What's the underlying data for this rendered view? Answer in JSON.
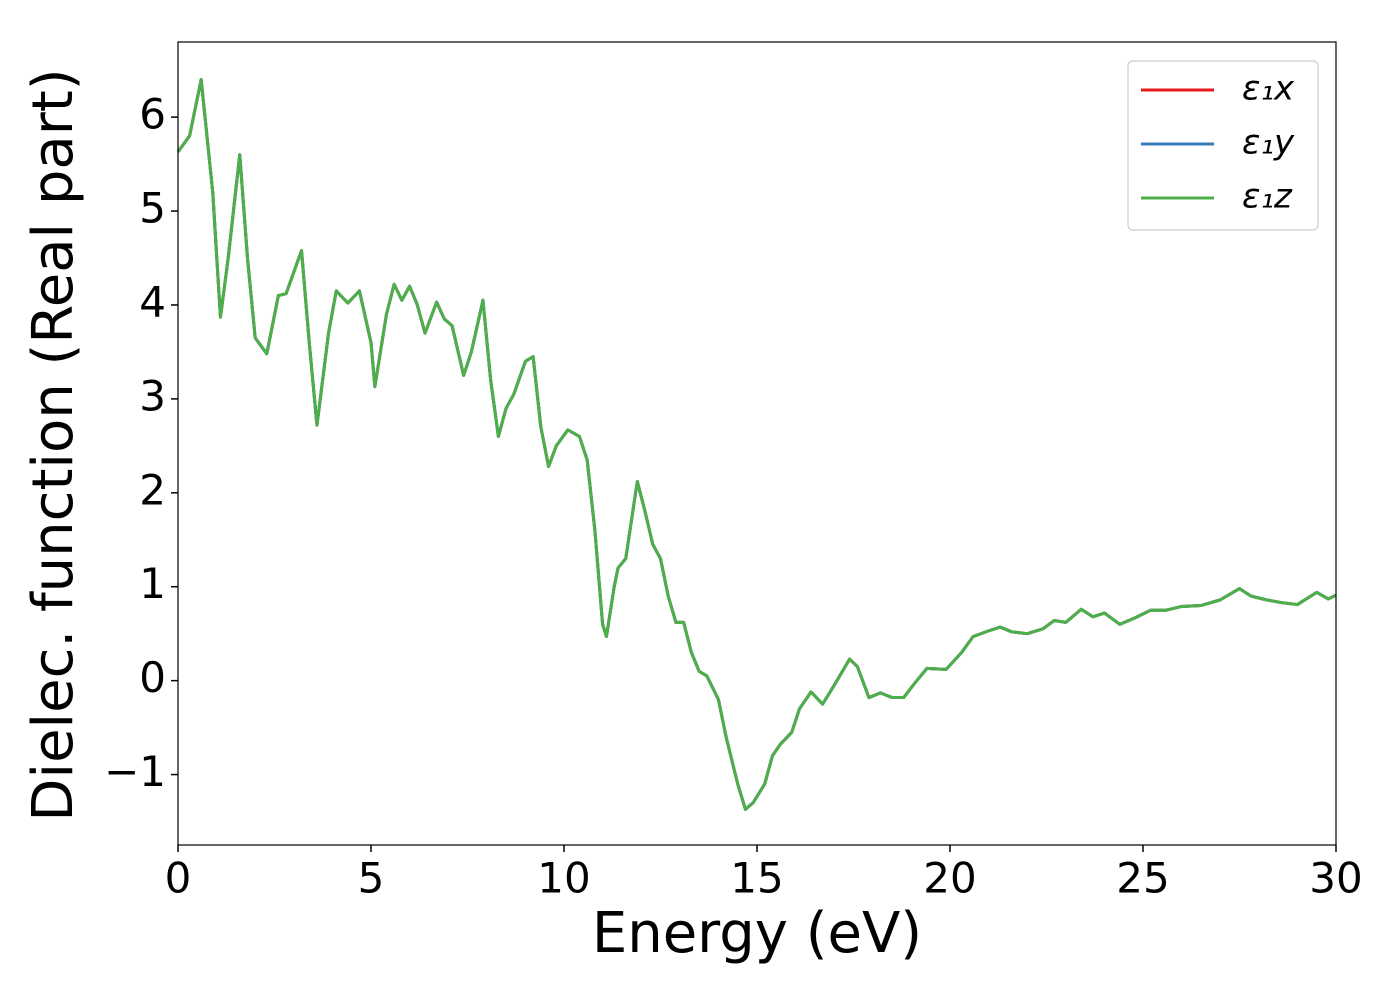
{
  "chart_data": {
    "type": "line",
    "xlabel": "Energy (eV)",
    "ylabel": "Dielec. function (Real part)",
    "xlim": [
      0,
      30
    ],
    "xticks": [
      0,
      5,
      10,
      15,
      20,
      25,
      30
    ],
    "ylim": [
      -1.75,
      6.8
    ],
    "yticks": [
      {
        "value": -1,
        "label": "−1"
      },
      0,
      1,
      2,
      3,
      4,
      5,
      6
    ],
    "legend": "upper right",
    "x": [
      0,
      0.3,
      0.6,
      0.9,
      1.1,
      1.3,
      1.6,
      1.8,
      2.0,
      2.3,
      2.6,
      2.8,
      3.2,
      3.4,
      3.6,
      3.9,
      4.1,
      4.4,
      4.7,
      5.0,
      5.1,
      5.4,
      5.6,
      5.8,
      6.0,
      6.2,
      6.4,
      6.7,
      6.9,
      7.1,
      7.4,
      7.6,
      7.9,
      8.1,
      8.3,
      8.5,
      8.7,
      9.0,
      9.2,
      9.4,
      9.6,
      9.8,
      10.1,
      10.4,
      10.6,
      10.8,
      11.0,
      11.1,
      11.3,
      11.4,
      11.6,
      11.8,
      11.9,
      12.1,
      12.3,
      12.5,
      12.7,
      12.9,
      13.1,
      13.3,
      13.5,
      13.7,
      14.0,
      14.2,
      14.5,
      14.7,
      14.9,
      15.2,
      15.4,
      15.6,
      15.9,
      16.1,
      16.4,
      16.7,
      17.0,
      17.4,
      17.6,
      17.9,
      18.2,
      18.5,
      18.8,
      19.1,
      19.4,
      19.9,
      20.3,
      20.6,
      21.0,
      21.3,
      21.6,
      22.0,
      22.4,
      22.7,
      23.0,
      23.4,
      23.7,
      24.0,
      24.4,
      24.8,
      25.2,
      25.6,
      26.0,
      26.5,
      27.0,
      27.5,
      27.8,
      28.2,
      28.6,
      29.0,
      29.5,
      29.8,
      30.0
    ],
    "series": [
      {
        "name": "ε₁x",
        "color": "#e41a1c",
        "values": [
          5.63,
          5.8,
          6.4,
          5.2,
          3.87,
          4.5,
          5.6,
          4.5,
          3.65,
          3.48,
          4.1,
          4.12,
          4.58,
          3.6,
          2.72,
          3.7,
          4.15,
          4.02,
          4.15,
          3.6,
          3.13,
          3.9,
          4.22,
          4.05,
          4.2,
          4.0,
          3.7,
          4.03,
          3.85,
          3.78,
          3.25,
          3.5,
          4.05,
          3.2,
          2.6,
          2.9,
          3.05,
          3.4,
          3.45,
          2.7,
          2.28,
          2.5,
          2.67,
          2.6,
          2.35,
          1.6,
          0.6,
          0.47,
          1.0,
          1.2,
          1.3,
          1.85,
          2.12,
          1.8,
          1.45,
          1.3,
          0.9,
          0.62,
          0.62,
          0.3,
          0.1,
          0.05,
          -0.2,
          -0.6,
          -1.1,
          -1.37,
          -1.3,
          -1.1,
          -0.8,
          -0.68,
          -0.55,
          -0.3,
          -0.12,
          -0.25,
          -0.05,
          0.23,
          0.15,
          -0.18,
          -0.13,
          -0.18,
          -0.18,
          -0.02,
          0.13,
          0.12,
          0.3,
          0.47,
          0.53,
          0.57,
          0.52,
          0.5,
          0.55,
          0.64,
          0.62,
          0.76,
          0.68,
          0.72,
          0.6,
          0.67,
          0.75,
          0.75,
          0.79,
          0.8,
          0.86,
          0.98,
          0.9,
          0.86,
          0.83,
          0.81,
          0.94,
          0.87,
          0.91
        ]
      },
      {
        "name": "ε₁y",
        "color": "#377eb8",
        "values": [
          5.63,
          5.8,
          6.4,
          5.2,
          3.87,
          4.5,
          5.6,
          4.5,
          3.65,
          3.48,
          4.1,
          4.12,
          4.58,
          3.6,
          2.72,
          3.7,
          4.15,
          4.02,
          4.15,
          3.6,
          3.13,
          3.9,
          4.22,
          4.05,
          4.2,
          4.0,
          3.7,
          4.03,
          3.85,
          3.78,
          3.25,
          3.5,
          4.05,
          3.2,
          2.6,
          2.9,
          3.05,
          3.4,
          3.45,
          2.7,
          2.28,
          2.5,
          2.67,
          2.6,
          2.35,
          1.6,
          0.6,
          0.47,
          1.0,
          1.2,
          1.3,
          1.85,
          2.12,
          1.8,
          1.45,
          1.3,
          0.9,
          0.62,
          0.62,
          0.3,
          0.1,
          0.05,
          -0.2,
          -0.6,
          -1.1,
          -1.37,
          -1.3,
          -1.1,
          -0.8,
          -0.68,
          -0.55,
          -0.3,
          -0.12,
          -0.25,
          -0.05,
          0.23,
          0.15,
          -0.18,
          -0.13,
          -0.18,
          -0.18,
          -0.02,
          0.13,
          0.12,
          0.3,
          0.47,
          0.53,
          0.57,
          0.52,
          0.5,
          0.55,
          0.64,
          0.62,
          0.76,
          0.68,
          0.72,
          0.6,
          0.67,
          0.75,
          0.75,
          0.79,
          0.8,
          0.86,
          0.98,
          0.9,
          0.86,
          0.83,
          0.81,
          0.94,
          0.87,
          0.91
        ]
      },
      {
        "name": "ε₁z",
        "color": "#4daf4a",
        "values": [
          5.63,
          5.8,
          6.4,
          5.2,
          3.87,
          4.5,
          5.6,
          4.5,
          3.65,
          3.48,
          4.1,
          4.12,
          4.58,
          3.6,
          2.72,
          3.7,
          4.15,
          4.02,
          4.15,
          3.6,
          3.13,
          3.9,
          4.22,
          4.05,
          4.2,
          4.0,
          3.7,
          4.03,
          3.85,
          3.78,
          3.25,
          3.5,
          4.05,
          3.2,
          2.6,
          2.9,
          3.05,
          3.4,
          3.45,
          2.7,
          2.28,
          2.5,
          2.67,
          2.6,
          2.35,
          1.6,
          0.6,
          0.47,
          1.0,
          1.2,
          1.3,
          1.85,
          2.12,
          1.8,
          1.45,
          1.3,
          0.9,
          0.62,
          0.62,
          0.3,
          0.1,
          0.05,
          -0.2,
          -0.6,
          -1.1,
          -1.37,
          -1.3,
          -1.1,
          -0.8,
          -0.68,
          -0.55,
          -0.3,
          -0.12,
          -0.25,
          -0.05,
          0.23,
          0.15,
          -0.18,
          -0.13,
          -0.18,
          -0.18,
          -0.02,
          0.13,
          0.12,
          0.3,
          0.47,
          0.53,
          0.57,
          0.52,
          0.5,
          0.55,
          0.64,
          0.62,
          0.76,
          0.68,
          0.72,
          0.6,
          0.67,
          0.75,
          0.75,
          0.79,
          0.8,
          0.86,
          0.98,
          0.9,
          0.86,
          0.83,
          0.81,
          0.94,
          0.87,
          0.91
        ]
      }
    ]
  }
}
